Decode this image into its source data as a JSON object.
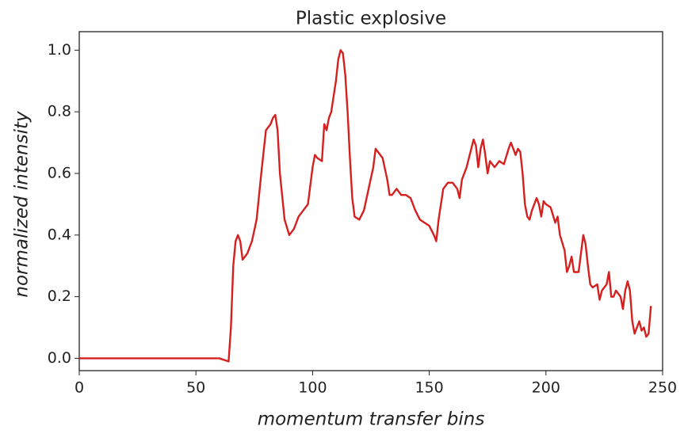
{
  "chart_data": {
    "type": "line",
    "title": "Plastic explosive",
    "xlabel": "momentum transfer bins",
    "ylabel": "normalized intensity",
    "xlim": [
      0,
      250
    ],
    "ylim": [
      -0.04,
      1.06
    ],
    "xticks": [
      0,
      50,
      100,
      150,
      200,
      250
    ],
    "yticks": [
      {
        "value": 0,
        "label": "0.0"
      },
      {
        "value": 0.2,
        "label": "0.2"
      },
      {
        "value": 0.4,
        "label": "0.4"
      },
      {
        "value": 0.6,
        "label": "0.6"
      },
      {
        "value": 0.8,
        "label": "0.8"
      },
      {
        "value": 1,
        "label": "1.0"
      }
    ],
    "grid": false,
    "series": [
      {
        "color": "#d62020",
        "x": [
          0,
          55,
          60,
          64,
          65,
          66,
          67,
          68,
          69,
          70,
          72,
          74,
          76,
          78,
          80,
          82,
          83,
          84,
          85,
          86,
          88,
          90,
          92,
          94,
          96,
          98,
          100,
          101,
          102,
          104,
          105,
          106,
          107,
          108,
          110,
          111,
          112,
          113,
          114,
          115,
          116,
          117,
          118,
          120,
          122,
          124,
          126,
          127,
          128,
          130,
          132,
          133,
          134,
          136,
          138,
          140,
          142,
          144,
          146,
          148,
          150,
          152,
          153,
          154,
          156,
          158,
          160,
          162,
          163,
          164,
          166,
          168,
          169,
          170,
          171,
          172,
          173,
          174,
          175,
          176,
          178,
          180,
          182,
          184,
          185,
          186,
          187,
          188,
          189,
          190,
          191,
          192,
          193,
          194,
          196,
          197,
          198,
          199,
          200,
          202,
          204,
          205,
          206,
          208,
          209,
          210,
          211,
          212,
          214,
          215,
          216,
          217,
          218,
          219,
          220,
          222,
          223,
          224,
          226,
          227,
          228,
          229,
          230,
          232,
          233,
          234,
          235,
          236,
          237,
          238,
          240,
          241,
          242,
          243,
          244,
          245
        ],
        "values": [
          0,
          0,
          0,
          -0.01,
          0.1,
          0.3,
          0.38,
          0.4,
          0.38,
          0.32,
          0.34,
          0.38,
          0.45,
          0.6,
          0.74,
          0.76,
          0.78,
          0.79,
          0.74,
          0.6,
          0.45,
          0.4,
          0.42,
          0.46,
          0.48,
          0.5,
          0.62,
          0.66,
          0.65,
          0.64,
          0.76,
          0.74,
          0.78,
          0.8,
          0.9,
          0.97,
          1.0,
          0.99,
          0.92,
          0.8,
          0.65,
          0.52,
          0.46,
          0.45,
          0.48,
          0.55,
          0.62,
          0.68,
          0.67,
          0.65,
          0.58,
          0.53,
          0.53,
          0.55,
          0.53,
          0.53,
          0.52,
          0.48,
          0.45,
          0.44,
          0.43,
          0.4,
          0.38,
          0.45,
          0.55,
          0.57,
          0.57,
          0.55,
          0.52,
          0.58,
          0.62,
          0.68,
          0.71,
          0.69,
          0.62,
          0.68,
          0.71,
          0.66,
          0.6,
          0.64,
          0.62,
          0.64,
          0.63,
          0.68,
          0.7,
          0.68,
          0.66,
          0.68,
          0.67,
          0.6,
          0.5,
          0.46,
          0.45,
          0.48,
          0.52,
          0.5,
          0.46,
          0.51,
          0.5,
          0.49,
          0.44,
          0.46,
          0.4,
          0.35,
          0.28,
          0.3,
          0.33,
          0.28,
          0.28,
          0.34,
          0.4,
          0.37,
          0.3,
          0.24,
          0.23,
          0.24,
          0.19,
          0.22,
          0.24,
          0.28,
          0.2,
          0.2,
          0.22,
          0.2,
          0.16,
          0.22,
          0.25,
          0.22,
          0.12,
          0.08,
          0.12,
          0.09,
          0.1,
          0.07,
          0.08,
          0.17
        ]
      }
    ]
  }
}
